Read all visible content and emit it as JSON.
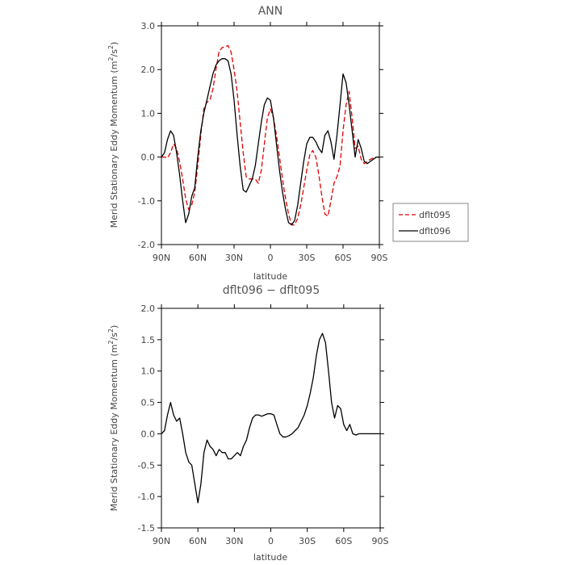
{
  "chart_data": [
    {
      "type": "line",
      "title": "ANN",
      "xlabel": "latitude",
      "ylabel": "Merid Stationary Eddy Momentum",
      "yunit_base": "m",
      "yunit_exp1": "2",
      "yunit_mid": "/s",
      "yunit_exp2": "2",
      "xlim": [
        90,
        -90
      ],
      "ylim": [
        -2.0,
        3.0
      ],
      "xticks": [
        90,
        60,
        30,
        0,
        -30,
        -60,
        -90
      ],
      "xtick_labels": [
        "90N",
        "60N",
        "30N",
        "0",
        "30S",
        "60S",
        "90S"
      ],
      "yticks": [
        -2.0,
        -1.0,
        0.0,
        1.0,
        2.0,
        3.0
      ],
      "ytick_labels": [
        "-2.0",
        "-1.0",
        "0.0",
        "1.0",
        "2.0",
        "3.0"
      ],
      "grid": false,
      "legend_position": "outside-right",
      "series": [
        {
          "name": "dflt095",
          "color": "#e00000",
          "dash": "dashed",
          "x": [
            90,
            87.5,
            85,
            82.5,
            80,
            77.5,
            75,
            72.5,
            70,
            67.5,
            65,
            62.5,
            60,
            57.5,
            55,
            52.5,
            50,
            47.5,
            45,
            42.5,
            40,
            37.5,
            35,
            32.5,
            30,
            27.5,
            25,
            22.5,
            20,
            17.5,
            15,
            12.5,
            10,
            7.5,
            5,
            2.5,
            0,
            -2.5,
            -5,
            -7.5,
            -10,
            -12.5,
            -15,
            -17.5,
            -20,
            -22.5,
            -25,
            -27.5,
            -30,
            -32.5,
            -35,
            -37.5,
            -40,
            -42.5,
            -45,
            -47.5,
            -50,
            -52.5,
            -55,
            -57.5,
            -60,
            -62.5,
            -65,
            -67.5,
            -70,
            -72.5,
            -75,
            -77.5,
            -80,
            -82.5,
            -85,
            -87.5,
            -90
          ],
          "y": [
            0.0,
            0.0,
            -0.02,
            0.1,
            0.3,
            0.2,
            -0.1,
            -0.5,
            -0.95,
            -1.2,
            -1.1,
            -0.8,
            -0.2,
            0.5,
            1.1,
            1.25,
            1.3,
            1.55,
            2.0,
            2.4,
            2.5,
            2.52,
            2.55,
            2.4,
            2.0,
            1.5,
            0.8,
            0.1,
            -0.45,
            -0.5,
            -0.5,
            -0.5,
            -0.6,
            -0.3,
            0.3,
            0.9,
            1.1,
            0.9,
            0.5,
            0.0,
            -0.5,
            -0.95,
            -1.3,
            -1.55,
            -1.55,
            -1.4,
            -1.1,
            -0.7,
            -0.3,
            0.05,
            0.15,
            0.0,
            -0.4,
            -0.9,
            -1.3,
            -1.35,
            -1.0,
            -0.6,
            -0.45,
            -0.2,
            0.6,
            1.2,
            1.5,
            0.9,
            0.2,
            0.25,
            -0.05,
            -0.15,
            -0.1,
            -0.05,
            -0.02,
            0.0,
            0.0
          ]
        },
        {
          "name": "dflt096",
          "color": "#000000",
          "dash": "solid",
          "x": [
            90,
            87.5,
            85,
            82.5,
            80,
            77.5,
            75,
            72.5,
            70,
            67.5,
            65,
            62.5,
            60,
            57.5,
            55,
            52.5,
            50,
            47.5,
            45,
            42.5,
            40,
            37.5,
            35,
            32.5,
            30,
            27.5,
            25,
            22.5,
            20,
            17.5,
            15,
            12.5,
            10,
            7.5,
            5,
            2.5,
            0,
            -2.5,
            -5,
            -7.5,
            -10,
            -12.5,
            -15,
            -17.5,
            -20,
            -22.5,
            -25,
            -27.5,
            -30,
            -32.5,
            -35,
            -37.5,
            -40,
            -42.5,
            -45,
            -47.5,
            -50,
            -52.5,
            -55,
            -57.5,
            -60,
            -62.5,
            -65,
            -67.5,
            -70,
            -72.5,
            -75,
            -77.5,
            -80,
            -82.5,
            -85,
            -87.5,
            -90
          ],
          "y": [
            0.0,
            0.1,
            0.4,
            0.6,
            0.5,
            0.1,
            -0.4,
            -1.0,
            -1.5,
            -1.3,
            -0.9,
            -0.7,
            0.0,
            0.6,
            1.0,
            1.3,
            1.6,
            1.9,
            2.1,
            2.2,
            2.25,
            2.25,
            2.2,
            1.9,
            1.3,
            0.5,
            -0.2,
            -0.75,
            -0.8,
            -0.65,
            -0.5,
            -0.2,
            0.3,
            0.8,
            1.2,
            1.35,
            1.3,
            0.9,
            0.3,
            -0.3,
            -0.8,
            -1.2,
            -1.5,
            -1.55,
            -1.45,
            -1.1,
            -0.6,
            -0.1,
            0.3,
            0.45,
            0.45,
            0.35,
            0.2,
            0.1,
            0.5,
            0.6,
            0.35,
            -0.05,
            0.5,
            1.2,
            1.9,
            1.7,
            1.2,
            0.6,
            0.0,
            0.4,
            0.2,
            -0.1,
            -0.15,
            -0.1,
            -0.05,
            0.0,
            0.0
          ]
        }
      ]
    },
    {
      "type": "line",
      "title": "dflt096 − dflt095",
      "xlabel": "latitude",
      "ylabel": "Merid Stationary Eddy Momentum",
      "yunit_base": "m",
      "yunit_exp1": "2",
      "yunit_mid": "/s",
      "yunit_exp2": "2",
      "xlim": [
        90,
        -90
      ],
      "ylim": [
        -1.5,
        2.0
      ],
      "xticks": [
        90,
        60,
        30,
        0,
        -30,
        -60,
        -90
      ],
      "xtick_labels": [
        "90N",
        "60N",
        "30N",
        "0",
        "30S",
        "60S",
        "90S"
      ],
      "yticks": [
        -1.5,
        -1.0,
        -0.5,
        0.0,
        0.5,
        1.0,
        1.5,
        2.0
      ],
      "ytick_labels": [
        "-1.5",
        "-1.0",
        "-0.5",
        "0.0",
        "0.5",
        "1.0",
        "1.5",
        "2.0"
      ],
      "grid": false,
      "series": [
        {
          "color": "#000000",
          "dash": "solid",
          "x": [
            90,
            87.5,
            85,
            82.5,
            80,
            77.5,
            75,
            72.5,
            70,
            67.5,
            65,
            62.5,
            60,
            57.5,
            55,
            52.5,
            50,
            47.5,
            45,
            42.5,
            40,
            37.5,
            35,
            32.5,
            30,
            27.5,
            25,
            22.5,
            20,
            17.5,
            15,
            12.5,
            10,
            7.5,
            5,
            2.5,
            0,
            -2.5,
            -5,
            -7.5,
            -10,
            -12.5,
            -15,
            -17.5,
            -20,
            -22.5,
            -25,
            -27.5,
            -30,
            -32.5,
            -35,
            -37.5,
            -40,
            -42.5,
            -45,
            -47.5,
            -50,
            -52.5,
            -55,
            -57.5,
            -60,
            -62.5,
            -65,
            -67.5,
            -70,
            -72.5,
            -75,
            -77.5,
            -80,
            -82.5,
            -85,
            -87.5,
            -90
          ],
          "y": [
            0.0,
            0.05,
            0.3,
            0.5,
            0.3,
            0.2,
            0.25,
            0.0,
            -0.3,
            -0.45,
            -0.5,
            -0.8,
            -1.1,
            -0.8,
            -0.3,
            -0.1,
            -0.2,
            -0.25,
            -0.35,
            -0.25,
            -0.3,
            -0.3,
            -0.4,
            -0.4,
            -0.35,
            -0.3,
            -0.35,
            -0.2,
            -0.1,
            0.1,
            0.25,
            0.3,
            0.3,
            0.28,
            0.3,
            0.32,
            0.32,
            0.3,
            0.15,
            0.0,
            -0.05,
            -0.05,
            -0.03,
            0.0,
            0.05,
            0.1,
            0.2,
            0.3,
            0.45,
            0.65,
            0.9,
            1.25,
            1.5,
            1.6,
            1.45,
            1.0,
            0.5,
            0.25,
            0.45,
            0.4,
            0.15,
            0.05,
            0.15,
            0.0,
            -0.02,
            0.0,
            0.0,
            0.0,
            0.0,
            0.0,
            0.0,
            0.0,
            0.0
          ]
        }
      ]
    }
  ]
}
